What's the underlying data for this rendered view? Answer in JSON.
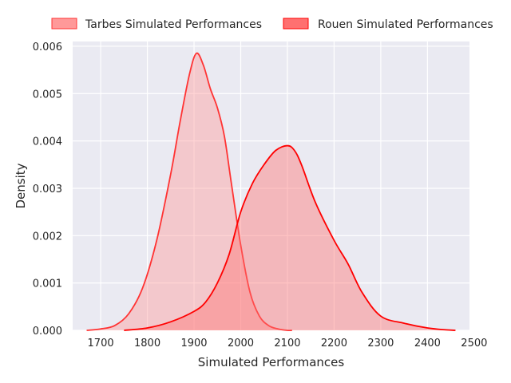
{
  "chart_data": {
    "type": "area",
    "title": "",
    "xlabel": "Simulated Performances",
    "ylabel": "Density",
    "xlim": [
      1640,
      2490
    ],
    "ylim": [
      0,
      0.0061
    ],
    "xticks": [
      1700,
      1800,
      1900,
      2000,
      2100,
      2200,
      2300,
      2400,
      2500
    ],
    "yticks": [
      0.0,
      0.001,
      0.002,
      0.003,
      0.004,
      0.005,
      0.006
    ],
    "ytick_labels": [
      "0.000",
      "0.001",
      "0.002",
      "0.003",
      "0.004",
      "0.005",
      "0.006"
    ],
    "grid": true,
    "legend_position": "top",
    "series": [
      {
        "name": "Tarbes Simulated Performances",
        "line_color": "#ff3333",
        "fill_color": "#ff9999",
        "x": [
          1670,
          1700,
          1730,
          1760,
          1790,
          1820,
          1850,
          1870,
          1890,
          1905,
          1920,
          1935,
          1950,
          1965,
          1980,
          2000,
          2020,
          2040,
          2060,
          2080,
          2100,
          2110
        ],
        "y": [
          0.0,
          3e-05,
          0.0001,
          0.00035,
          0.0009,
          0.0019,
          0.0033,
          0.0044,
          0.0054,
          0.00585,
          0.0056,
          0.0051,
          0.0047,
          0.0041,
          0.0031,
          0.0018,
          0.0008,
          0.0003,
          0.0001,
          3e-05,
          0.0,
          0.0
        ]
      },
      {
        "name": "Rouen Simulated Performances",
        "line_color": "#ff0000",
        "fill_color": "#ff7070",
        "x": [
          1750,
          1800,
          1850,
          1900,
          1925,
          1950,
          1975,
          2000,
          2025,
          2050,
          2075,
          2100,
          2115,
          2130,
          2160,
          2200,
          2230,
          2260,
          2300,
          2350,
          2400,
          2440,
          2460
        ],
        "y": [
          0.0,
          5e-05,
          0.00018,
          0.0004,
          0.0006,
          0.001,
          0.0016,
          0.0025,
          0.0031,
          0.0035,
          0.0038,
          0.0039,
          0.0038,
          0.0035,
          0.0027,
          0.0019,
          0.0014,
          0.0008,
          0.0003,
          0.00015,
          5e-05,
          1e-05,
          0.0
        ]
      }
    ]
  }
}
